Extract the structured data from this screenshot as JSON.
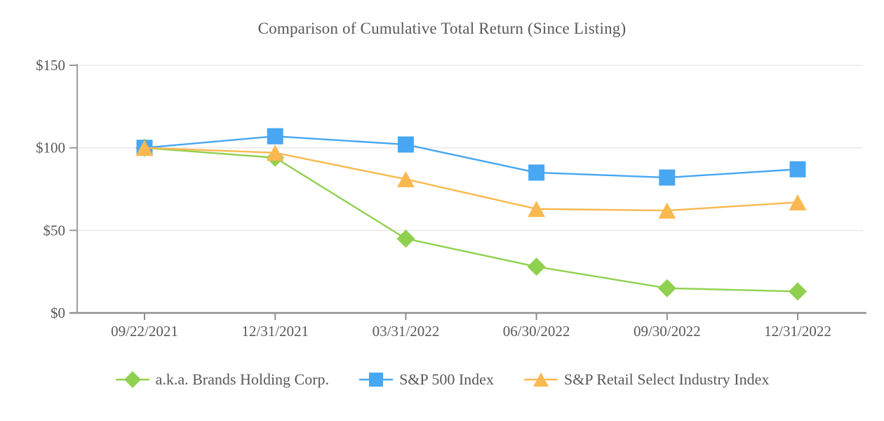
{
  "chart_data": {
    "type": "line",
    "title": "Comparison of Cumulative Total Return (Since Listing)",
    "categories": [
      "09/22/2021",
      "12/31/2021",
      "03/31/2022",
      "06/30/2022",
      "09/30/2022",
      "12/31/2022"
    ],
    "series": [
      {
        "name": "a.k.a. Brands Holding Corp.",
        "marker": "diamond",
        "color": "#8FD14F",
        "values": [
          100,
          94,
          45,
          28,
          15,
          13
        ]
      },
      {
        "name": "S&P 500 Index",
        "marker": "square",
        "color": "#47A7F2",
        "values": [
          100,
          107,
          102,
          85,
          82,
          87
        ]
      },
      {
        "name": "S&P Retail Select Industry Index",
        "marker": "triangle",
        "color": "#F9B950",
        "values": [
          100,
          97,
          81,
          63,
          62,
          67
        ]
      }
    ],
    "xlabel": "",
    "ylabel": "",
    "y_axis": {
      "min": 0,
      "max": 150,
      "ticks": [
        {
          "label": "$0",
          "value": 0
        },
        {
          "label": "$50",
          "value": 50
        },
        {
          "label": "$100",
          "value": 100
        },
        {
          "label": "$150",
          "value": 150
        }
      ]
    },
    "grid": true,
    "legend_position": "bottom",
    "style": {
      "text_color": "#595959",
      "grid_color": "#E9E9E9",
      "axis_color": "#8F8F8F",
      "tick_color": "#9C9C9C",
      "background": "#FFFFFF"
    }
  }
}
